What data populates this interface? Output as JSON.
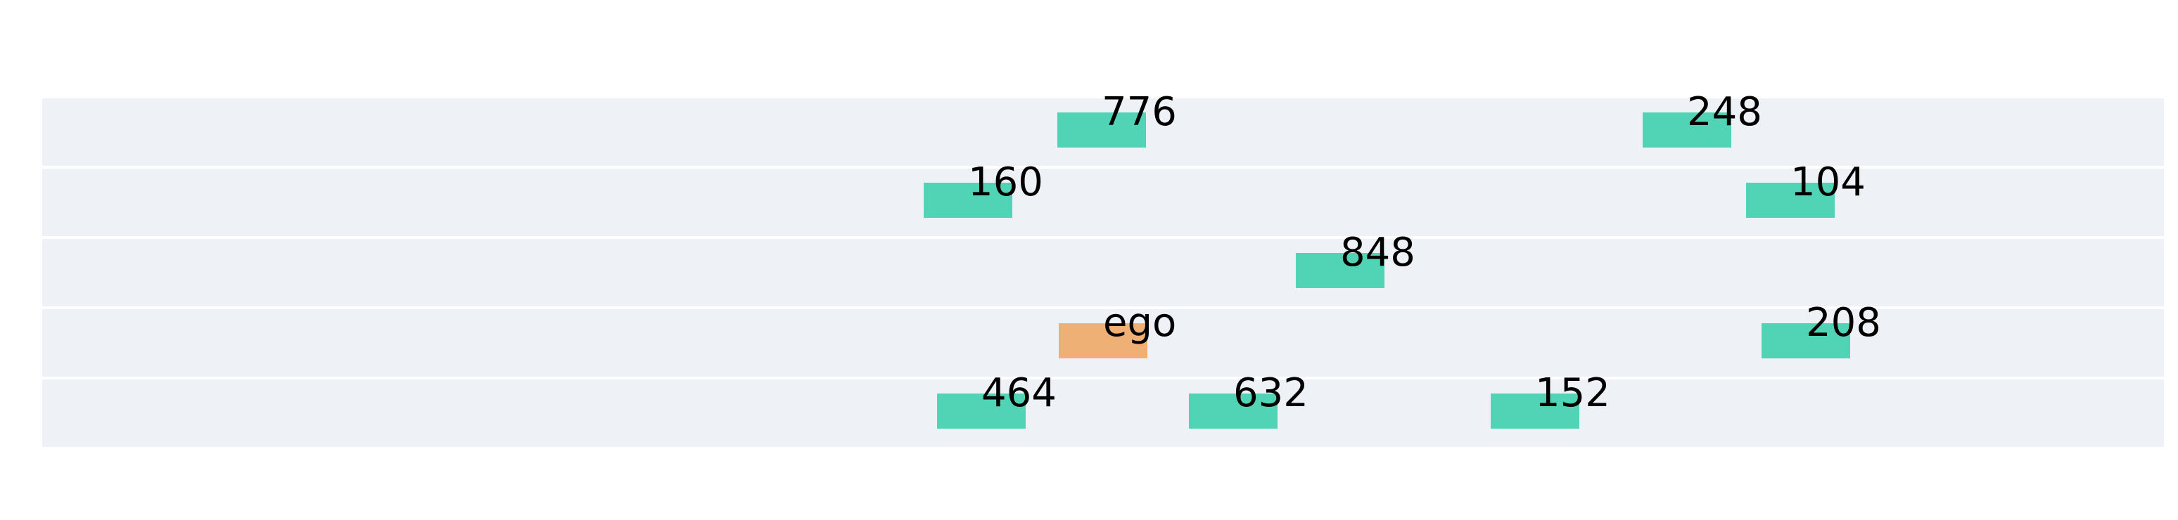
{
  "colors": {
    "lane": "#eef1f6",
    "other_vehicle": "#50d4b5",
    "ego_vehicle": "#efb075",
    "label": "#000000"
  },
  "lanes": [
    {
      "index": 0
    },
    {
      "index": 1
    },
    {
      "index": 2
    },
    {
      "index": 3
    },
    {
      "index": 4
    }
  ],
  "vehicles": [
    {
      "label": "776",
      "lane": 0,
      "ego": false
    },
    {
      "label": "248",
      "lane": 0,
      "ego": false
    },
    {
      "label": "160",
      "lane": 1,
      "ego": false
    },
    {
      "label": "104",
      "lane": 1,
      "ego": false
    },
    {
      "label": "848",
      "lane": 2,
      "ego": false
    },
    {
      "label": "ego",
      "lane": 3,
      "ego": true
    },
    {
      "label": "208",
      "lane": 3,
      "ego": false
    },
    {
      "label": "464",
      "lane": 4,
      "ego": false
    },
    {
      "label": "632",
      "lane": 4,
      "ego": false
    },
    {
      "label": "152",
      "lane": 4,
      "ego": false
    }
  ]
}
